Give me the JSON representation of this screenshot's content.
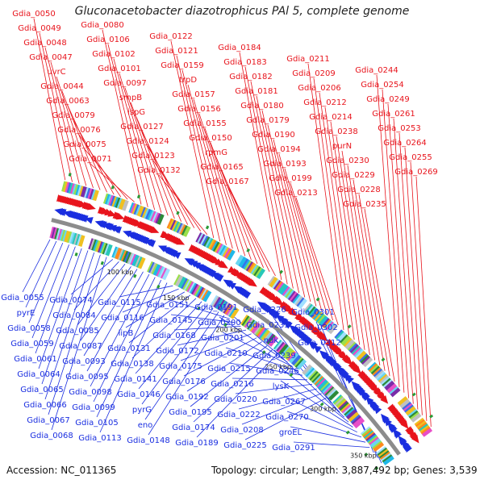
{
  "header": {
    "title": "Gluconacetobacter diazotrophicus PAl 5, complete genome"
  },
  "footer": {
    "accession": "Accession: NC_011365",
    "stats": "Topology: circular; Length: 3,887,492 bp; Genes: 3,539"
  },
  "colors": {
    "forward": "#e8141c",
    "reverse": "#1a2ee0",
    "backbone": "#8c8c8c",
    "tick": "#2a9a36",
    "ruler_text": "#222222"
  },
  "ruler_labels": [
    "100 kbp",
    "150 kbp",
    "200 kbp",
    "250 kbp",
    "300 kbp",
    "350 kbp"
  ],
  "forward_labels": [
    "Gdia_0050",
    "Gdia_0049",
    "Gdia_0048",
    "Gdia_0047",
    "uvrC",
    "Gdia_0044",
    "Gdia_0063",
    "Gdia_0079",
    "Gdia_0076",
    "Gdia_0075",
    "Gdia_0071",
    "Gdia_0080",
    "Gdia_0106",
    "Gdia_0102",
    "Gdia_0101",
    "Gdia_0097",
    "smpB",
    "ispG",
    "Gdia_0127",
    "Gdia_0124",
    "Gdia_0123",
    "Gdia_0132",
    "Gdia_0122",
    "Gdia_0121",
    "Gdia_0159",
    "trpD",
    "Gdia_0157",
    "Gdia_0156",
    "Gdia_0155",
    "Gdia_0150",
    "rpmG",
    "Gdia_0165",
    "Gdia_0167",
    "Gdia_0184",
    "Gdia_0183",
    "Gdia_0182",
    "Gdia_0181",
    "Gdia_0180",
    "Gdia_0179",
    "Gdia_0190",
    "Gdia_0194",
    "Gdia_0193",
    "Gdia_0199",
    "Gdia_0213",
    "Gdia_0211",
    "Gdia_0209",
    "Gdia_0206",
    "Gdia_0212",
    "Gdia_0214",
    "Gdia_0238",
    "purN",
    "Gdia_0230",
    "Gdia_0229",
    "Gdia_0228",
    "Gdia_0235",
    "Gdia_0244",
    "Gdia_0254",
    "Gdia_0249",
    "Gdia_0261",
    "Gdia_0253",
    "Gdia_0264",
    "Gdia_0255",
    "Gdia_0269"
  ],
  "reverse_labels": [
    "Gdia_0055",
    "pyrE",
    "Gdia_0058",
    "Gdia_0059",
    "Gdia_0061",
    "Gdia_0064",
    "Gdia_0065",
    "Gdia_0066",
    "Gdia_0067",
    "Gdia_0068",
    "Gdia_0074",
    "Gdia_0084",
    "Gdia_0085",
    "Gdia_0087",
    "Gdia_0093",
    "Gdia_0095",
    "Gdia_0098",
    "Gdia_0099",
    "Gdia_0105",
    "Gdia_0113",
    "Gdia_0115",
    "Gdia_0116",
    "lipB",
    "Gdia_0131",
    "Gdia_0138",
    "Gdia_0141",
    "Gdia_0146",
    "pyrG",
    "eno",
    "Gdia_0148",
    "Gdia_0151",
    "Gdia_0145",
    "Gdia_0168",
    "Gdia_0172",
    "Gdia_0175",
    "Gdia_0176",
    "Gdia_0192",
    "Gdia_0195",
    "Gdia_0174",
    "Gdia_0189",
    "Gdia_0191",
    "Gdia_0200",
    "Gdia_0201",
    "Gdia_0210",
    "Gdia_0215",
    "Gdia_0216",
    "Gdia_0220",
    "Gdia_0222",
    "Gdia_0208",
    "Gdia_0225",
    "Gdia_0226",
    "Gdia_0233",
    "ndk",
    "Gdia_0239",
    "Gdia_0246",
    "lysK",
    "Gdia_0267",
    "Gdia_0270",
    "groEL",
    "Gdia_0291",
    "Gdia_0301",
    "Gdia_0302",
    "Gdia_0312"
  ]
}
